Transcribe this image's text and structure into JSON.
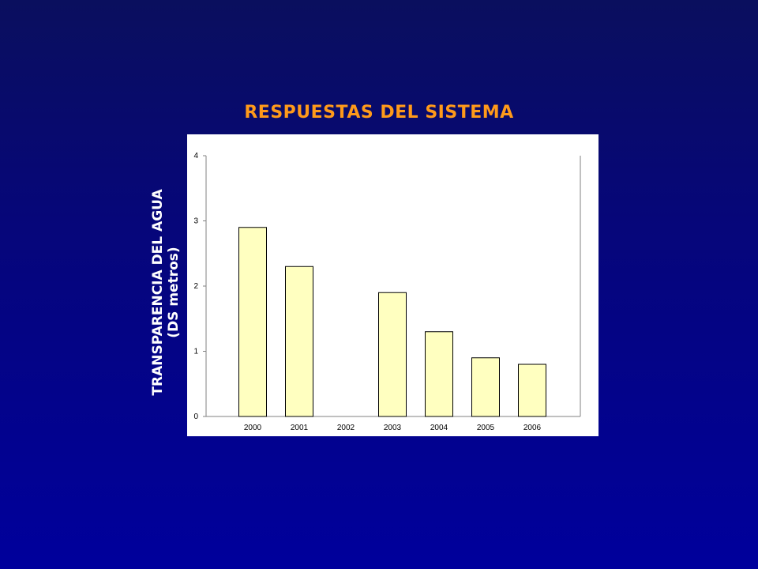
{
  "slide": {
    "title": "RESPUESTAS DEL SISTEMA",
    "ylabel_line1": "TRANSPARENCIA DEL AGUA",
    "ylabel_line2": "(DS metros)"
  },
  "chart_data": {
    "type": "bar",
    "categories": [
      "2000",
      "2001",
      "2002",
      "2003",
      "2004",
      "2005",
      "2006"
    ],
    "values": [
      2.9,
      2.3,
      null,
      1.9,
      1.3,
      0.9,
      0.8
    ],
    "ylim": [
      0,
      4
    ],
    "yticks": [
      0,
      1,
      2,
      3,
      4
    ],
    "grid": false,
    "legend": "none",
    "colors": {
      "bar_fill": "#ffffc0",
      "bar_stroke": "#000000",
      "title": "#ff9a1a"
    }
  }
}
